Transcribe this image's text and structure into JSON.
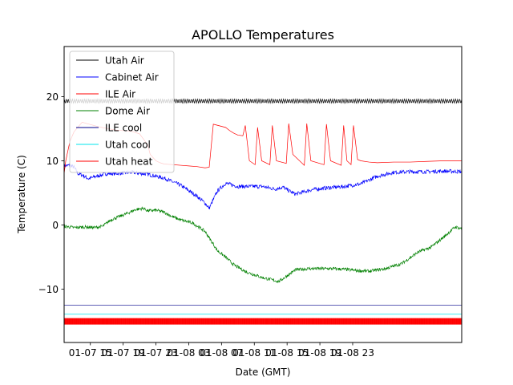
{
  "chart_data": {
    "type": "line",
    "title": "APOLLO Temperatures",
    "xlabel": "Date (GMT)",
    "ylabel": "Temperature (C)",
    "xlim": [
      11.8,
      60.3
    ],
    "ylim": [
      -18.3,
      27.8
    ],
    "x_unit": "hours since 01-07 00:00 GMT",
    "x_ticks": [
      {
        "value": 15,
        "label": "01-07 15"
      },
      {
        "value": 19,
        "label": "01-07 19"
      },
      {
        "value": 23,
        "label": "01-07 23"
      },
      {
        "value": 27,
        "label": "01-08 03"
      },
      {
        "value": 31,
        "label": "01-08 07"
      },
      {
        "value": 35,
        "label": "01-08 11"
      },
      {
        "value": 39,
        "label": "01-08 15"
      },
      {
        "value": 43,
        "label": "01-08 19"
      },
      {
        "value": 47,
        "label": "01-08 23"
      }
    ],
    "y_ticks": [
      {
        "value": -10,
        "label": "−10"
      },
      {
        "value": 0,
        "label": "0"
      },
      {
        "value": 10,
        "label": "10"
      },
      {
        "value": 20,
        "label": "20"
      }
    ],
    "legend_position": "upper-left",
    "series": [
      {
        "name": "Utah Air",
        "color": "#000000",
        "x": [
          11.8,
          20,
          30,
          40,
          50,
          60.3
        ],
        "y": [
          19.3,
          19.3,
          19.3,
          19.3,
          19.3,
          19.3
        ],
        "ripple": 0.5
      },
      {
        "name": "Cabinet Air",
        "color": "#0000ff",
        "x": [
          11.8,
          12.5,
          13.0,
          13.5,
          14.0,
          14.8,
          15.5,
          17.0,
          18.0,
          20.0,
          22.0,
          23.0,
          24.0,
          26.0,
          28.0,
          29.0,
          29.5,
          30.5,
          31.5,
          33.0,
          34.5,
          36.0,
          37.5,
          38.5,
          39.0,
          40.0,
          42.0,
          44.0,
          46.0,
          48.0,
          50.0,
          52.0,
          54.0,
          56.0,
          58.0,
          60.3
        ],
        "y": [
          9.2,
          9.3,
          9.0,
          8.0,
          7.8,
          7.2,
          7.5,
          8.0,
          8.0,
          8.2,
          7.9,
          7.6,
          7.3,
          6.2,
          4.5,
          3.4,
          2.6,
          5.3,
          6.5,
          6.0,
          6.0,
          6.0,
          5.6,
          5.9,
          5.5,
          4.8,
          5.5,
          5.8,
          6.0,
          6.4,
          7.6,
          8.2,
          8.3,
          8.3,
          8.4,
          8.3
        ],
        "noise": 0.3
      },
      {
        "name": "ILE Air",
        "color": "#ff0000",
        "x": [
          11.8,
          12.0,
          12.5,
          13.0,
          14.0,
          16.0,
          18.0,
          20.0,
          21.0,
          22.0,
          22.3,
          23.0,
          23.5,
          24.0,
          25.0,
          26.0,
          27.0,
          28.0,
          29.0,
          29.5,
          30.0,
          31.5,
          32.0,
          32.5,
          33.0,
          33.6,
          33.9,
          34.4,
          35.1,
          35.4,
          35.9,
          36.9,
          37.2,
          37.7,
          38.9,
          39.2,
          39.7,
          41.1,
          41.4,
          41.9,
          43.5,
          43.8,
          44.3,
          45.6,
          45.9,
          46.3,
          46.8,
          47.1,
          47.6,
          48.0,
          49.0,
          50.0,
          52.0,
          54.0,
          56.0,
          58.0,
          60.3
        ],
        "y": [
          8.0,
          10.0,
          13.0,
          14.5,
          16.0,
          15.3,
          14.8,
          14.6,
          14.2,
          12.5,
          11.0,
          10.0,
          9.7,
          9.5,
          9.4,
          9.3,
          9.2,
          9.1,
          8.9,
          9.0,
          15.7,
          15.2,
          14.7,
          14.3,
          14.0,
          13.9,
          15.5,
          10.0,
          9.4,
          15.2,
          10.0,
          9.4,
          15.5,
          10.0,
          9.6,
          15.8,
          11.0,
          9.3,
          15.8,
          10.0,
          9.4,
          15.7,
          10.0,
          9.3,
          15.5,
          10.0,
          9.4,
          15.5,
          10.2,
          10.0,
          9.8,
          9.7,
          9.8,
          9.8,
          9.9,
          10.0,
          10.0
        ],
        "y_note": "sawtooth spikes approximate the plotted ILE Air heating cycles"
      },
      {
        "name": "Dome Air",
        "color": "#008000",
        "x": [
          11.8,
          13.0,
          14.5,
          15.5,
          16.5,
          17.5,
          18.5,
          19.5,
          20.5,
          21.5,
          22.0,
          23.0,
          24.0,
          25.0,
          26.0,
          27.5,
          29.0,
          30.5,
          31.5,
          32.5,
          34.0,
          36.0,
          38.0,
          40.0,
          41.5,
          43.0,
          44.5,
          46.0,
          47.5,
          49.0,
          51.0,
          53.0,
          55.0,
          56.5,
          58.0,
          59.5,
          60.3
        ],
        "y": [
          -0.2,
          -0.4,
          -0.3,
          -0.4,
          -0.2,
          0.8,
          1.3,
          1.8,
          2.4,
          2.6,
          2.2,
          2.3,
          2.0,
          1.3,
          0.8,
          0.3,
          -1.0,
          -4.0,
          -5.0,
          -6.2,
          -7.3,
          -8.2,
          -8.8,
          -7.0,
          -6.8,
          -6.8,
          -6.8,
          -6.9,
          -7.1,
          -7.2,
          -6.8,
          -6.0,
          -4.2,
          -3.5,
          -2.0,
          -0.3,
          -0.6
        ],
        "noise": 0.25
      },
      {
        "name": "ILE cool",
        "color": "#00008b",
        "x": [
          11.8,
          60.3
        ],
        "y": [
          -12.5,
          -12.5
        ]
      },
      {
        "name": "Utah cool",
        "color": "#00e5ee",
        "x": [
          11.8,
          60.3
        ],
        "y": [
          -13.9,
          -13.9
        ]
      },
      {
        "name": "Utah heat",
        "color": "#ff0000",
        "x": [
          11.8,
          60.3
        ],
        "y_low": -15.5,
        "y_high": -14.5,
        "pattern": "rapid on-off cycling band"
      }
    ]
  }
}
